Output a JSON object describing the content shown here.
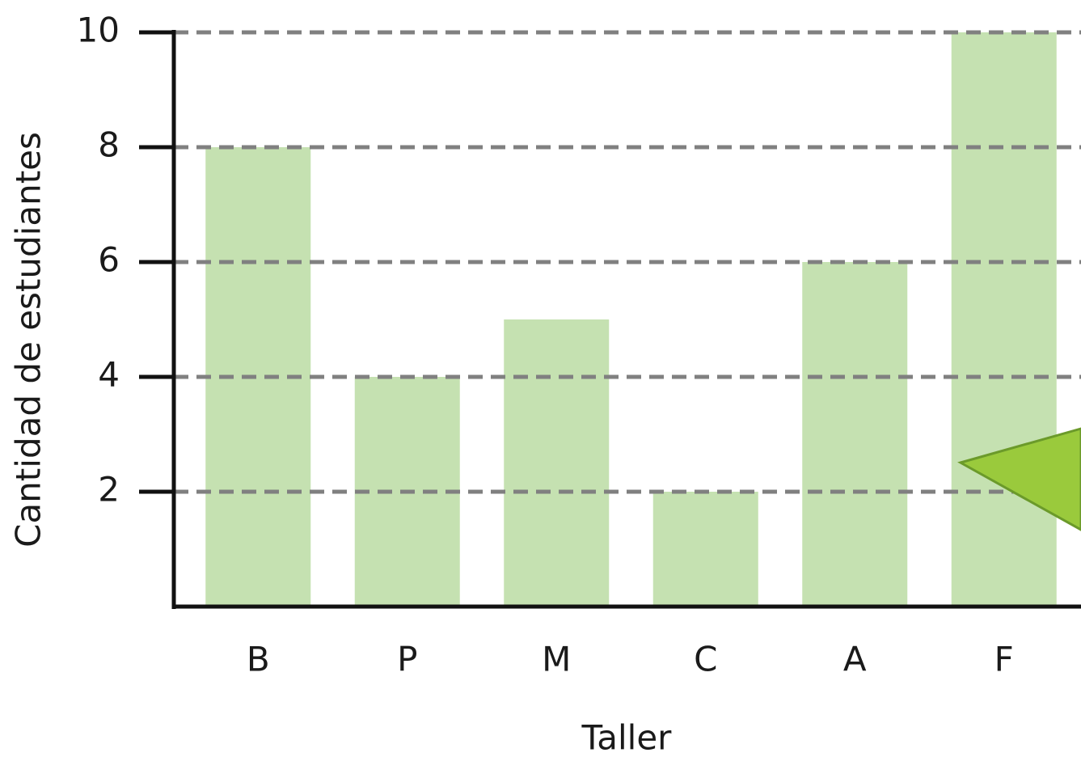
{
  "chart_data": {
    "type": "bar",
    "categories": [
      "B",
      "P",
      "M",
      "C",
      "A",
      "F"
    ],
    "values": [
      8,
      4,
      5,
      2,
      6,
      10
    ],
    "color": "#c5e1b1",
    "xlabel": "Taller",
    "ylabel": "Cantidad de estudiantes",
    "ylim": [
      0,
      10
    ],
    "yticks": [
      2,
      4,
      6,
      8,
      10
    ],
    "grid": true
  }
}
